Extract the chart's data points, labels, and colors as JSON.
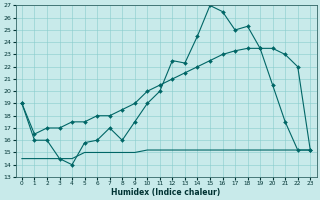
{
  "xlabel": "Humidex (Indice chaleur)",
  "ylabel": "",
  "bg_color": "#c8eaea",
  "grid_color": "#88cccc",
  "line_color": "#006666",
  "xlim_min": -0.5,
  "xlim_max": 23.5,
  "ylim_min": 13,
  "ylim_max": 27,
  "xticks": [
    0,
    1,
    2,
    3,
    4,
    5,
    6,
    7,
    8,
    9,
    10,
    11,
    12,
    13,
    14,
    15,
    16,
    17,
    18,
    19,
    20,
    21,
    22,
    23
  ],
  "yticks": [
    13,
    14,
    15,
    16,
    17,
    18,
    19,
    20,
    21,
    22,
    23,
    24,
    25,
    26,
    27
  ],
  "line1_x": [
    0,
    1,
    2,
    3,
    4,
    5,
    6,
    7,
    8,
    9,
    10,
    11,
    12,
    13,
    14,
    15,
    16,
    17,
    18,
    19,
    20,
    21,
    22,
    23
  ],
  "line1_y": [
    19,
    16,
    16,
    14.5,
    14,
    15.8,
    16,
    17,
    16,
    17.5,
    19,
    20,
    22.5,
    22.3,
    24.5,
    27,
    26.5,
    25,
    25.3,
    23.5,
    20.5,
    17.5,
    15.2,
    15.2
  ],
  "line2_x": [
    0,
    1,
    2,
    3,
    4,
    5,
    6,
    7,
    8,
    9,
    10,
    11,
    12,
    13,
    14,
    15,
    16,
    17,
    18,
    19,
    20,
    21,
    22,
    23
  ],
  "line2_y": [
    19,
    16.5,
    17,
    17,
    17.5,
    17.5,
    18,
    18,
    18.5,
    19,
    20,
    20.5,
    21,
    21.5,
    22,
    22.5,
    23,
    23.3,
    23.5,
    23.5,
    23.5,
    23,
    22,
    15.2
  ],
  "line3_x": [
    0,
    1,
    2,
    3,
    4,
    5,
    6,
    7,
    8,
    9,
    10,
    11,
    12,
    13,
    14,
    15,
    16,
    17,
    18,
    19,
    20,
    21,
    22,
    23
  ],
  "line3_y": [
    14.5,
    14.5,
    14.5,
    14.5,
    14.5,
    15,
    15,
    15,
    15,
    15,
    15.2,
    15.2,
    15.2,
    15.2,
    15.2,
    15.2,
    15.2,
    15.2,
    15.2,
    15.2,
    15.2,
    15.2,
    15.2,
    15.2
  ]
}
